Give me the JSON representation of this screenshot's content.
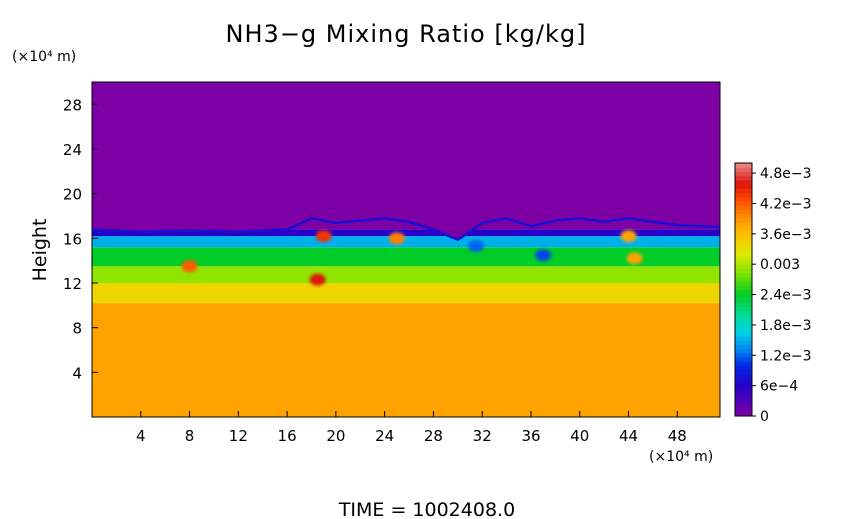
{
  "chart_data": {
    "type": "heatmap",
    "title": "NH3−g Mixing Ratio [kg/kg]",
    "ylabel": "Height",
    "y_unit_label": "(×10⁴ m)",
    "x_unit_label": "(×10⁴ m)",
    "xlim": [
      0,
      51.5
    ],
    "ylim": [
      0,
      30
    ],
    "x_ticks": [
      4,
      8,
      12,
      16,
      20,
      24,
      28,
      32,
      36,
      40,
      44,
      48
    ],
    "y_ticks": [
      4,
      8,
      12,
      16,
      20,
      24,
      28
    ],
    "colorbar": {
      "labels": [
        "0",
        "6e−4",
        "1.2e−3",
        "1.8e−3",
        "2.4e−3",
        "0.003",
        "3.6e−3",
        "4.2e−3",
        "4.8e−3"
      ],
      "values": [
        0,
        0.0006,
        0.0012,
        0.0018,
        0.0024,
        0.003,
        0.0036,
        0.0042,
        0.0048
      ],
      "vmin": 0,
      "vmax": 0.005
    },
    "field_layers": [
      {
        "y_from": 0,
        "y_to": 10.2,
        "value": 0.0038
      },
      {
        "y_from": 10.2,
        "y_to": 12.0,
        "value": 0.0034
      },
      {
        "y_from": 12.0,
        "y_to": 13.5,
        "value": 0.0029
      },
      {
        "y_from": 13.5,
        "y_to": 15.2,
        "value": 0.0024
      },
      {
        "y_from": 15.2,
        "y_to": 16.2,
        "value": 0.0015
      },
      {
        "y_from": 16.2,
        "y_to": 16.8,
        "value": 0.0006
      },
      {
        "y_from": 16.8,
        "y_to": 30,
        "value": 0.0
      }
    ],
    "cloud_top_height": [
      {
        "x": 0,
        "y": 16.9
      },
      {
        "x": 4,
        "y": 16.7
      },
      {
        "x": 8,
        "y": 16.8
      },
      {
        "x": 12,
        "y": 16.7
      },
      {
        "x": 16,
        "y": 16.9
      },
      {
        "x": 18,
        "y": 17.9
      },
      {
        "x": 20,
        "y": 17.5
      },
      {
        "x": 22,
        "y": 17.7
      },
      {
        "x": 24,
        "y": 17.9
      },
      {
        "x": 26,
        "y": 17.6
      },
      {
        "x": 28,
        "y": 16.9
      },
      {
        "x": 30,
        "y": 16.0
      },
      {
        "x": 32,
        "y": 17.5
      },
      {
        "x": 34,
        "y": 17.9
      },
      {
        "x": 36,
        "y": 17.2
      },
      {
        "x": 38,
        "y": 17.7
      },
      {
        "x": 40,
        "y": 17.9
      },
      {
        "x": 42,
        "y": 17.6
      },
      {
        "x": 44,
        "y": 17.9
      },
      {
        "x": 46,
        "y": 17.6
      },
      {
        "x": 48,
        "y": 17.3
      },
      {
        "x": 51.5,
        "y": 17.1
      }
    ],
    "features": [
      {
        "x": 8.0,
        "y": 13.5,
        "value": 0.0042
      },
      {
        "x": 18.5,
        "y": 12.3,
        "value": 0.0046
      },
      {
        "x": 19.0,
        "y": 16.2,
        "value": 0.0044
      },
      {
        "x": 25.0,
        "y": 16.0,
        "value": 0.004
      },
      {
        "x": 44.0,
        "y": 16.2,
        "value": 0.0038
      },
      {
        "x": 44.5,
        "y": 14.2,
        "value": 0.0038
      },
      {
        "x": 37.0,
        "y": 14.5,
        "value": 0.0011
      },
      {
        "x": 31.5,
        "y": 15.3,
        "value": 0.0012
      }
    ]
  },
  "footer": {
    "time_text": "TIME  =  1002408.0"
  }
}
